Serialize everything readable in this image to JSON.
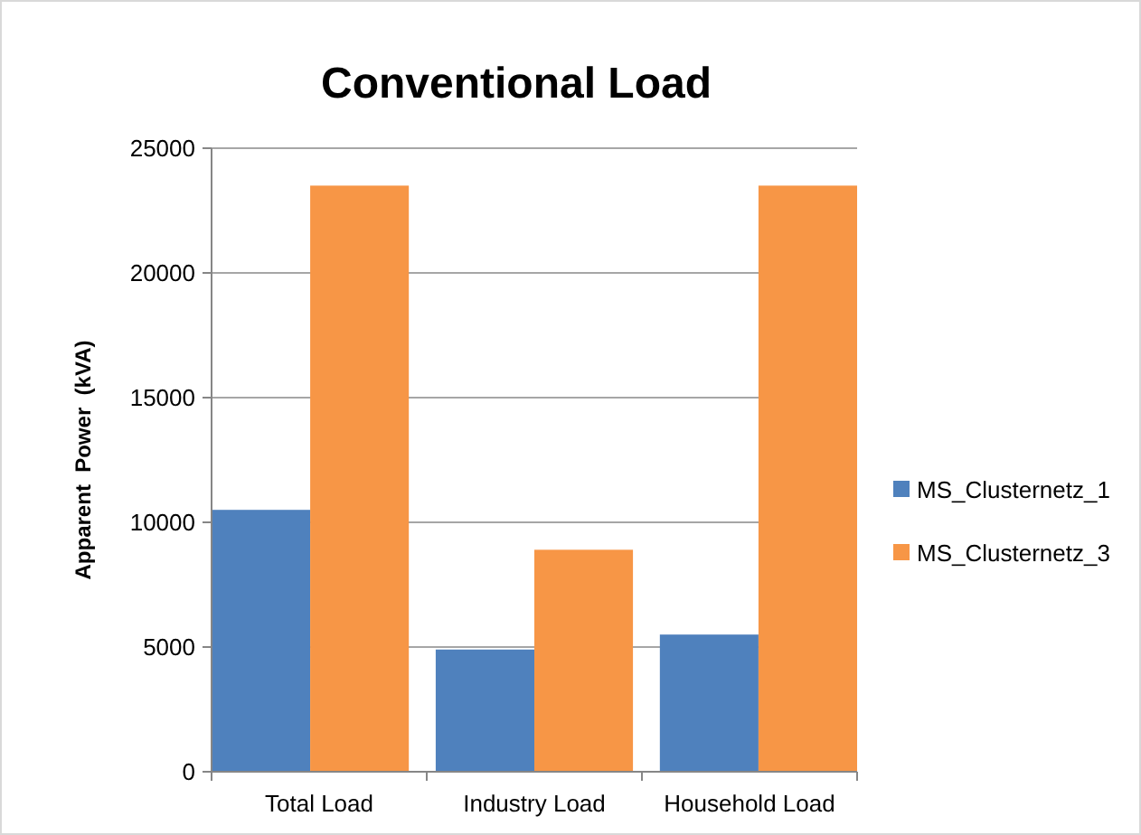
{
  "chart_data": {
    "type": "bar",
    "title": "Conventional Load",
    "ylabel": "Apparent  Power  (kVA)",
    "categories": [
      "Total Load",
      "Industry Load",
      "Household Load"
    ],
    "series": [
      {
        "name": "MS_Clusternetz_1",
        "color": "#4f81bd",
        "values": [
          10500,
          4900,
          5500
        ]
      },
      {
        "name": "MS_Clusternetz_3",
        "color": "#f79646",
        "values": [
          23500,
          8900,
          23500
        ]
      }
    ],
    "ylim": [
      0,
      25000
    ],
    "yticks": [
      0,
      5000,
      10000,
      15000,
      20000,
      25000
    ],
    "grid": "y",
    "legend": "right"
  }
}
